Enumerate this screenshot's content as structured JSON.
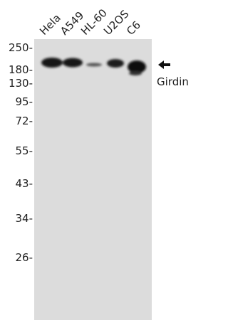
{
  "lanes": [
    "Hela",
    "A549",
    "HL-60",
    "U2OS",
    "C6"
  ],
  "markers": [
    "250-",
    "180-",
    "130-",
    "95-",
    "72-",
    "55-",
    "43-",
    "34-",
    "26-"
  ],
  "band_label": "Girdin"
}
